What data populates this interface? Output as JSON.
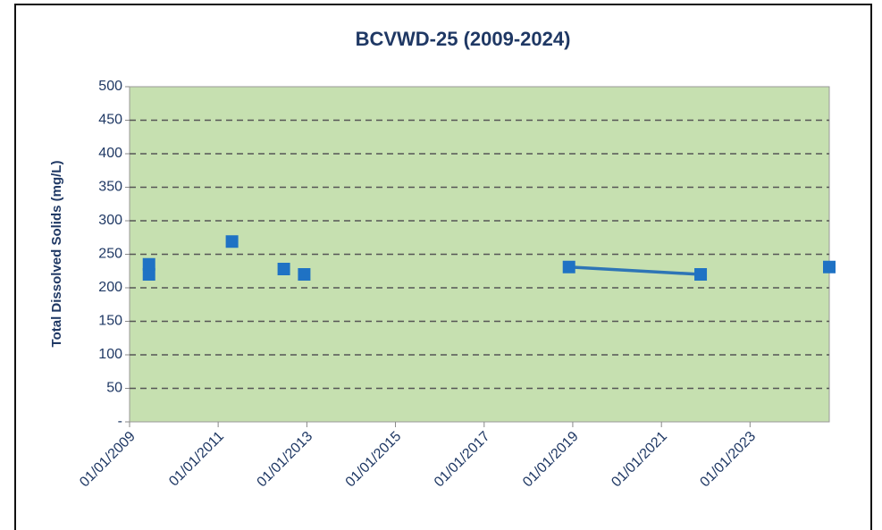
{
  "chart_data": {
    "type": "line",
    "title": "BCVWD-25 (2009-2024)",
    "y_label": "Total Dissolved Solids (mg/L)",
    "x": [
      "2009-06-10",
      "2009-06-10",
      null,
      "2011-04-25",
      null,
      "2012-06-25",
      null,
      "2012-12-10",
      null,
      "2018-12-01",
      "2021-11-20",
      null,
      "2024-10-15"
    ],
    "series": [
      {
        "color": "#1f72c4",
        "line_color": "#2e75b6",
        "values": [
          220,
          235,
          null,
          269,
          null,
          228,
          null,
          220,
          null,
          231,
          220,
          null,
          231
        ]
      }
    ],
    "xlim": [
      "2009-01-01",
      "2024-10-15"
    ],
    "xticks": [
      {
        "value": "2009-01-01",
        "label": "01/01/2009"
      },
      {
        "value": "2011-01-01",
        "label": "01/01/2011"
      },
      {
        "value": "2013-01-01",
        "label": "01/01/2013"
      },
      {
        "value": "2015-01-01",
        "label": "01/01/2015"
      },
      {
        "value": "2017-01-01",
        "label": "01/01/2017"
      },
      {
        "value": "2019-01-01",
        "label": "01/01/2019"
      },
      {
        "value": "2021-01-01",
        "label": "01/01/2021"
      },
      {
        "value": "2023-01-01",
        "label": "01/01/2023"
      }
    ],
    "ylim": [
      0,
      500
    ],
    "yticks": [
      {
        "value": 0,
        "label": "-"
      },
      50,
      100,
      150,
      200,
      250,
      300,
      350,
      400,
      450,
      500
    ],
    "grid": true,
    "plot_background": "#c6e0b0"
  }
}
